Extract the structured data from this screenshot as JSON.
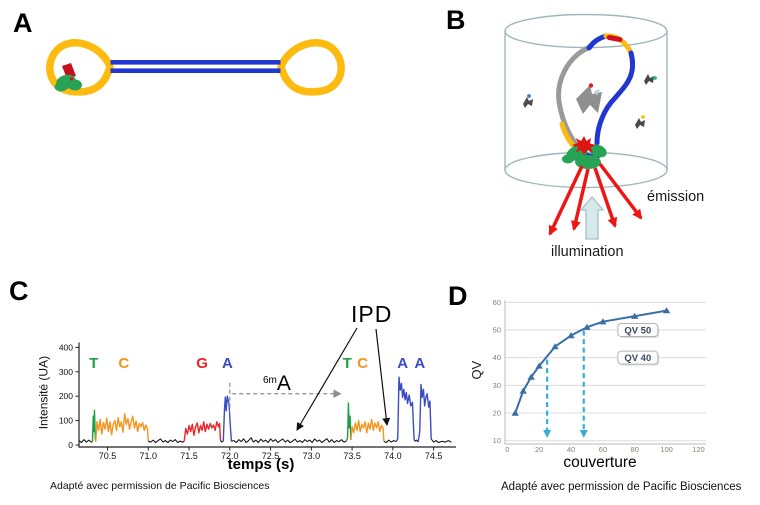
{
  "figure": {
    "panels": {
      "a": {
        "label": "A"
      },
      "b": {
        "label": "B",
        "emission_label": "émission",
        "illumination_label": "illumination"
      },
      "c": {
        "label": "C",
        "ylabel": "Intensité (UA)",
        "xlabel": "temps (s)",
        "ipd_label": "IPD",
        "methyl_sup": "6m",
        "methyl_base": "A",
        "caption": "Adapté avec permission de Pacific Biosciences"
      },
      "d": {
        "label": "D",
        "ylabel": "QV",
        "xlabel": "couverture",
        "caption": "Adapté avec permission de Pacific Biosciences"
      }
    }
  },
  "colors": {
    "adapter_yellow": "#fdbb10",
    "dna_blue": "#2236d1",
    "polymerase_green": "#27a355",
    "primer_red": "#c50f1f",
    "base_T": "#1fa048",
    "base_C": "#f7941d",
    "base_G": "#e8262b",
    "base_A": "#3a4cc4",
    "trace_black": "#1a1a1a",
    "cylinder": "#9fb8bd",
    "emission_red": "#ee1515",
    "illumination_fill": "#d6e8ea",
    "illumination_stroke": "#9fc3c8",
    "qv_curve": "#3a6ea8",
    "qv_arrow": "#35aed4",
    "grid": "#dcdcdc",
    "annot_gray": "#8c8c8c"
  },
  "chart_data": [
    {
      "panel": "C",
      "type": "line",
      "title": "",
      "xlabel": "temps (s)",
      "ylabel": "Intensité (UA)",
      "xlim": [
        70.15,
        74.75
      ],
      "ylim": [
        0,
        420
      ],
      "xticks": [
        "70.5",
        "71.0",
        "71.5",
        "72.0",
        "72.5",
        "73.0",
        "73.5",
        "74.0",
        "74.5"
      ],
      "yticks": [
        "0",
        "100",
        "200",
        "300",
        "400"
      ],
      "base_calls": [
        {
          "base": "T",
          "t": 70.33
        },
        {
          "base": "C",
          "t": 70.7
        },
        {
          "base": "G",
          "t": 71.66
        },
        {
          "base": "A",
          "t": 71.97
        },
        {
          "base": "T",
          "t": 73.44
        },
        {
          "base": "C",
          "t": 73.63
        },
        {
          "base": "A",
          "t": 74.12
        },
        {
          "base": "A",
          "t": 74.33
        }
      ],
      "annotations": {
        "ipd": "IPD",
        "methylated_base": "6mA",
        "dash_h": {
          "y": 210,
          "t0": 72.03,
          "t1": 73.37
        },
        "dash_v": {
          "t": 72.0,
          "v0": 130,
          "v1": 255
        }
      },
      "segments": [
        {
          "base": "-",
          "pts": [
            70.15,
            18,
            70.18,
            10,
            70.21,
            22,
            70.24,
            12,
            70.27,
            20,
            70.3,
            12,
            70.315,
            14
          ]
        },
        {
          "base": "T",
          "pts": [
            70.315,
            14,
            70.325,
            118,
            70.33,
            55,
            70.34,
            142,
            70.35,
            25,
            70.355,
            14
          ]
        },
        {
          "base": "C",
          "pts": [
            70.355,
            14,
            70.37,
            95,
            70.39,
            60,
            70.41,
            105,
            70.43,
            45,
            70.45,
            92,
            70.47,
            65,
            70.49,
            110,
            70.51,
            55,
            70.53,
            95,
            70.55,
            42,
            70.57,
            85,
            70.59,
            100,
            70.61,
            60,
            70.63,
            112,
            70.65,
            75,
            70.67,
            95,
            70.69,
            52,
            70.71,
            128,
            70.73,
            85,
            70.75,
            108,
            70.77,
            65,
            70.79,
            95,
            70.81,
            118,
            70.83,
            70,
            70.85,
            98,
            70.87,
            55,
            70.89,
            88,
            70.91,
            75,
            70.93,
            92,
            70.95,
            60,
            70.97,
            82,
            70.99,
            65,
            71.0,
            15
          ]
        },
        {
          "base": "-",
          "pts": [
            71.0,
            15,
            71.03,
            12,
            71.06,
            20,
            71.09,
            10,
            71.12,
            18,
            71.15,
            25,
            71.18,
            12,
            71.21,
            18,
            71.24,
            10,
            71.27,
            20,
            71.3,
            14,
            71.33,
            22,
            71.36,
            10,
            71.39,
            16,
            71.42,
            12,
            71.44,
            15
          ]
        },
        {
          "base": "G",
          "pts": [
            71.44,
            15,
            71.46,
            68,
            71.48,
            45,
            71.5,
            80,
            71.52,
            55,
            71.54,
            85,
            71.56,
            40,
            71.58,
            75,
            71.6,
            90,
            71.62,
            50,
            71.64,
            80,
            71.66,
            60,
            71.68,
            95,
            71.7,
            55,
            71.72,
            85,
            71.74,
            65,
            71.76,
            88,
            71.78,
            70,
            71.8,
            82,
            71.82,
            60,
            71.84,
            95,
            71.86,
            75,
            71.875,
            88,
            71.885,
            20
          ]
        },
        {
          "base": "-",
          "pts": [
            71.885,
            20,
            71.9,
            12,
            71.92,
            16
          ]
        },
        {
          "base": "A",
          "pts": [
            71.92,
            16,
            71.935,
            150,
            71.945,
            196,
            71.955,
            140,
            71.97,
            200,
            71.99,
            168,
            72.01,
            60,
            72.02,
            15
          ]
        },
        {
          "base": "-",
          "pts": [
            72.02,
            15,
            72.05,
            18,
            72.08,
            10,
            72.11,
            22,
            72.14,
            14,
            72.17,
            25,
            72.2,
            10,
            72.23,
            18,
            72.26,
            30,
            72.29,
            12,
            72.32,
            20,
            72.35,
            10,
            72.38,
            24,
            72.41,
            14,
            72.44,
            20,
            72.47,
            10,
            72.5,
            25,
            72.53,
            15,
            72.56,
            22,
            72.59,
            10,
            72.62,
            18,
            72.65,
            25,
            72.68,
            12,
            72.71,
            20,
            72.74,
            10,
            72.77,
            16,
            72.8,
            24,
            72.83,
            12,
            72.86,
            18,
            72.89,
            10,
            72.92,
            22,
            72.95,
            14,
            72.98,
            20,
            73.01,
            10,
            73.04,
            25,
            73.07,
            15,
            73.1,
            20,
            73.13,
            10,
            73.16,
            18,
            73.19,
            26,
            73.22,
            12,
            73.25,
            22,
            73.28,
            10,
            73.31,
            18,
            73.34,
            14,
            73.37,
            22,
            73.4,
            12,
            73.43,
            16
          ]
        },
        {
          "base": "T",
          "pts": [
            73.43,
            16,
            73.445,
            30,
            73.455,
            172,
            73.465,
            70,
            73.475,
            118,
            73.485,
            20
          ]
        },
        {
          "base": "C",
          "pts": [
            73.485,
            20,
            73.5,
            75,
            73.52,
            50,
            73.54,
            90,
            73.56,
            60,
            73.58,
            100,
            73.6,
            55,
            73.62,
            85,
            73.64,
            70,
            73.66,
            95,
            73.68,
            50,
            73.7,
            90,
            73.72,
            65,
            73.74,
            105,
            73.76,
            60,
            73.78,
            90,
            73.8,
            70,
            73.82,
            95,
            73.84,
            55,
            73.86,
            80,
            73.88,
            70,
            73.89,
            15
          ]
        },
        {
          "base": "-",
          "pts": [
            73.89,
            15,
            73.92,
            10,
            73.95,
            20,
            73.98,
            12,
            74.01,
            18,
            74.04,
            14
          ]
        },
        {
          "base": "A",
          "pts": [
            74.04,
            14,
            74.06,
            25,
            74.075,
            278,
            74.09,
            225,
            74.105,
            252,
            74.12,
            195,
            74.135,
            228,
            74.15,
            185,
            74.165,
            215,
            74.18,
            170,
            74.2,
            205,
            74.22,
            160,
            74.24,
            175,
            74.26,
            25,
            74.27,
            15
          ]
        },
        {
          "base": "-",
          "pts": [
            74.27,
            15,
            74.29,
            20,
            74.31,
            12
          ]
        },
        {
          "base": "A",
          "pts": [
            74.31,
            12,
            74.33,
            55,
            74.345,
            248,
            74.36,
            195,
            74.375,
            228,
            74.39,
            160,
            74.405,
            195,
            74.42,
            210,
            74.44,
            155,
            74.455,
            180,
            74.47,
            25
          ]
        },
        {
          "base": "-",
          "pts": [
            74.47,
            25,
            74.5,
            12,
            74.53,
            18,
            74.56,
            10,
            74.6,
            15,
            74.64,
            12,
            74.68,
            18,
            74.72,
            12
          ]
        }
      ]
    },
    {
      "panel": "D",
      "type": "line",
      "title": "",
      "xlabel": "couverture",
      "ylabel": "QV",
      "xlim": [
        0,
        125
      ],
      "ylim": [
        10,
        60
      ],
      "xticks": [
        "0",
        "20",
        "40",
        "60",
        "80",
        "100",
        "120"
      ],
      "yticks": [
        "10",
        "20",
        "30",
        "40",
        "50",
        "60"
      ],
      "grid": "horizontal",
      "series": [
        {
          "name": "QV vs couverture",
          "marker": "triangle",
          "points": [
            [
              5,
              20
            ],
            [
              10,
              28
            ],
            [
              15,
              33
            ],
            [
              20,
              37
            ],
            [
              30,
              44
            ],
            [
              40,
              48
            ],
            [
              50,
              51
            ],
            [
              60,
              53
            ],
            [
              80,
              55
            ],
            [
              100,
              57
            ]
          ]
        }
      ],
      "arrows": [
        {
          "x": 25,
          "y_top": 40,
          "y_bottom": 11
        },
        {
          "x": 48,
          "y_top": 50.5,
          "y_bottom": 11
        }
      ],
      "callouts": [
        {
          "label": "QV 50",
          "x": 70,
          "y": 50
        },
        {
          "label": "QV 40",
          "x": 70,
          "y": 40
        }
      ]
    }
  ]
}
